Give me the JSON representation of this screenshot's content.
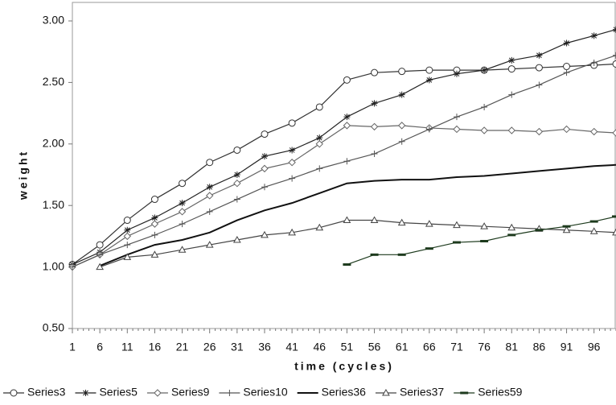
{
  "chart_data": {
    "type": "line",
    "x_label": "time (cycles)",
    "y_label": "weight",
    "x": [
      1,
      6,
      11,
      16,
      21,
      26,
      31,
      36,
      41,
      46,
      51,
      56,
      61,
      66,
      71,
      76,
      81,
      86,
      91,
      96,
      100
    ],
    "xlim": [
      1,
      100
    ],
    "xticks": [
      1,
      6,
      11,
      16,
      21,
      26,
      31,
      36,
      41,
      46,
      51,
      56,
      61,
      66,
      71,
      76,
      81,
      86,
      91,
      96
    ],
    "ylim": [
      0.5,
      3.0
    ],
    "yticks": [
      {
        "value": 0.5,
        "label": "0.50"
      },
      {
        "value": 1.0,
        "label": "1.00"
      },
      {
        "value": 1.5,
        "label": "1.50"
      },
      {
        "value": 2.0,
        "label": "2.00"
      },
      {
        "value": 2.5,
        "label": "2.50"
      },
      {
        "value": 3.0,
        "label": "3.00"
      }
    ],
    "series": [
      {
        "name": "Series3",
        "color": "#333333",
        "marker": "circle",
        "values": [
          1.02,
          1.18,
          1.38,
          1.55,
          1.68,
          1.85,
          1.95,
          2.08,
          2.17,
          2.3,
          2.52,
          2.58,
          2.59,
          2.6,
          2.6,
          2.6,
          2.61,
          2.62,
          2.63,
          2.64,
          2.65
        ]
      },
      {
        "name": "Series5",
        "color": "#222222",
        "marker": "star",
        "values": [
          1.02,
          1.12,
          1.3,
          1.4,
          1.52,
          1.65,
          1.75,
          1.9,
          1.95,
          2.05,
          2.22,
          2.33,
          2.4,
          2.52,
          2.57,
          2.6,
          2.68,
          2.72,
          2.82,
          2.88,
          2.93
        ]
      },
      {
        "name": "Series9",
        "color": "#666666",
        "marker": "diamond",
        "values": [
          1.0,
          1.1,
          1.25,
          1.35,
          1.45,
          1.58,
          1.68,
          1.8,
          1.85,
          2.0,
          2.15,
          2.14,
          2.15,
          2.13,
          2.12,
          2.11,
          2.11,
          2.1,
          2.12,
          2.1,
          2.09
        ]
      },
      {
        "name": "Series10",
        "color": "#555555",
        "marker": "plus",
        "values": [
          1.0,
          1.1,
          1.18,
          1.26,
          1.35,
          1.45,
          1.55,
          1.65,
          1.72,
          1.8,
          1.86,
          1.92,
          2.02,
          2.12,
          2.22,
          2.3,
          2.4,
          2.48,
          2.58,
          2.66,
          2.72
        ]
      },
      {
        "name": "Series36",
        "color": "#111111",
        "marker": "none",
        "values": [
          null,
          1.01,
          1.1,
          1.18,
          1.22,
          1.28,
          1.38,
          1.46,
          1.52,
          1.6,
          1.68,
          1.7,
          1.71,
          1.71,
          1.73,
          1.74,
          1.76,
          1.78,
          1.8,
          1.82,
          1.83
        ]
      },
      {
        "name": "Series37",
        "color": "#444444",
        "marker": "triangle",
        "values": [
          null,
          1.0,
          1.08,
          1.1,
          1.14,
          1.18,
          1.22,
          1.26,
          1.28,
          1.32,
          1.38,
          1.38,
          1.36,
          1.35,
          1.34,
          1.33,
          1.32,
          1.31,
          1.3,
          1.29,
          1.28
        ]
      },
      {
        "name": "Series59",
        "color": "#1d3a1d",
        "marker": "dash",
        "values": [
          null,
          null,
          null,
          null,
          null,
          null,
          null,
          null,
          null,
          null,
          1.02,
          1.1,
          1.1,
          1.15,
          1.2,
          1.21,
          1.26,
          1.3,
          1.33,
          1.37,
          1.41
        ]
      }
    ]
  }
}
